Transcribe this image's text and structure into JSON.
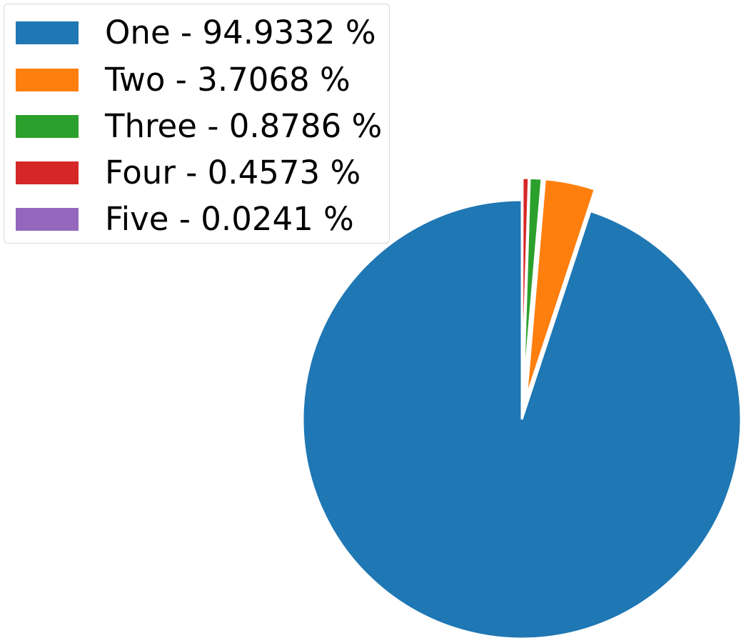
{
  "chart_data": {
    "type": "pie",
    "slices": [
      {
        "label": "One - 94.9332 %",
        "value": 94.9332,
        "color": "#1f77b4",
        "exploded": false
      },
      {
        "label": "Two - 3.7068 %",
        "value": 3.7068,
        "color": "#ff7f0e",
        "exploded": true
      },
      {
        "label": "Three - 0.8786 %",
        "value": 0.8786,
        "color": "#2ca02c",
        "exploded": true
      },
      {
        "label": "Four - 0.4573 %",
        "value": 0.4573,
        "color": "#d62728",
        "exploded": true
      },
      {
        "label": "Five - 0.0241 %",
        "value": 0.0241,
        "color": "#9467bd",
        "exploded": true
      }
    ],
    "start_angle_deg": 90,
    "direction": "counterclockwise",
    "legend_position": "top-left"
  }
}
